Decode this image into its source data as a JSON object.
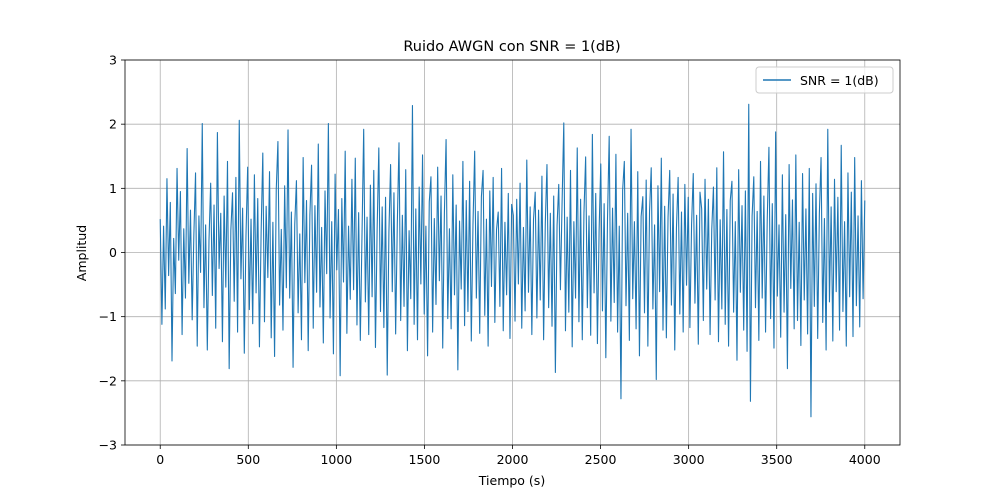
{
  "chart_data": {
    "type": "line",
    "title": "Ruido AWGN con SNR = 1(dB)",
    "xlabel": "Tiempo (s)",
    "ylabel": "Amplitud",
    "xlim": [
      -200,
      4200
    ],
    "ylim": [
      -3,
      3
    ],
    "x_ticks": [
      0,
      500,
      1000,
      1500,
      2000,
      2500,
      3000,
      3500,
      4000
    ],
    "x_tick_labels": [
      "0",
      "500",
      "1000",
      "1500",
      "2000",
      "2500",
      "3000",
      "3500",
      "4000"
    ],
    "y_ticks": [
      -3,
      -2,
      -1,
      0,
      1,
      2,
      3
    ],
    "y_tick_labels": [
      "−3",
      "−2",
      "−1",
      "0",
      "1",
      "2",
      "3"
    ],
    "grid": true,
    "legend_position": "top-right",
    "x_range": [
      0,
      4000
    ],
    "series": [
      {
        "name": "SNR = 1(dB)",
        "color": "#1f77b4",
        "values": [
          0.52,
          -1.12,
          0.41,
          -0.88,
          1.15,
          -0.36,
          0.78,
          -1.69,
          0.22,
          -0.64,
          1.31,
          -0.12,
          0.95,
          -1.28,
          0.37,
          -0.71,
          1.62,
          -0.48,
          0.66,
          -1.05,
          0.28,
          1.24,
          -1.46,
          0.57,
          -0.31,
          2.01,
          -0.86,
          0.43,
          -1.52,
          0.19,
          1.08,
          -0.67,
          0.74,
          -1.18,
          1.87,
          -0.25,
          0.61,
          -1.39,
          0.88,
          -0.54,
          1.42,
          -1.81,
          0.35,
          0.93,
          -0.76,
          1.17,
          -1.24,
          2.06,
          -0.41,
          0.69,
          -1.57,
          0.26,
          1.33,
          -0.89,
          0.52,
          -1.11,
          1.21,
          -0.63,
          0.84,
          -1.47,
          0.31,
          1.55,
          -1.08,
          0.72,
          -0.39,
          1.26,
          -1.33,
          0.47,
          -1.62,
          0.98,
          1.73,
          -0.82,
          0.36,
          -1.21,
          1.04,
          -0.55,
          1.91,
          -0.71,
          0.63,
          -1.79,
          0.44,
          1.12,
          -0.94,
          0.29,
          -1.36,
          1.48,
          -0.47,
          0.81,
          -1.53,
          0.58,
          1.36,
          -1.18,
          0.73,
          -0.62,
          1.69,
          -0.85,
          0.39,
          -1.41,
          0.96,
          -0.33,
          2.01,
          -1.02,
          0.48,
          -1.58,
          1.22,
          -0.27,
          0.67,
          -1.92,
          0.84,
          -0.46,
          1.58,
          -1.26,
          0.41,
          -0.73,
          1.14,
          -0.58,
          1.47,
          -1.13,
          0.62,
          -1.37,
          0.28,
          1.92,
          -0.77,
          0.55,
          -1.28,
          1.05,
          -0.69,
          1.28,
          -1.48,
          0.37,
          1.63,
          -0.92,
          0.71,
          -1.17,
          0.86,
          -1.91,
          0.32,
          1.37,
          -0.61,
          0.93,
          -1.27,
          0.46,
          1.71,
          -1.06,
          0.58,
          -0.84,
          1.29,
          -1.53,
          0.34,
          -0.72,
          2.29,
          -1.12,
          0.68,
          -1.36,
          1.02,
          -0.49,
          1.52,
          -0.96,
          0.41,
          -1.61,
          0.79,
          1.18,
          -1.24,
          0.53,
          -0.81,
          1.33,
          -0.44,
          0.88,
          -1.49,
          0.62,
          1.76,
          -1.03,
          0.37,
          -1.19,
          1.21,
          -0.66,
          0.74,
          -1.83,
          0.49,
          -0.57,
          1.42,
          -1.14,
          0.81,
          -0.92,
          1.11,
          -1.38,
          0.43,
          1.58,
          -0.71,
          0.64,
          -1.26,
          0.87,
          1.28,
          -0.98,
          0.52,
          -1.46,
          0.96,
          -0.53,
          1.17,
          -1.09,
          0.36,
          0.63,
          -0.84,
          1.31,
          -1.22,
          0.47,
          -0.66,
          0.92,
          -1.34,
          0.75,
          0.58,
          -1.07,
          0.83,
          -0.49,
          1.08,
          -1.18,
          0.39,
          -0.91,
          1.44,
          -0.62,
          0.71,
          -1.28,
          0.52,
          0.94,
          -1.02,
          0.66,
          -0.74,
          1.19,
          -1.36,
          0.45,
          1.37,
          -0.86,
          0.61,
          -1.15,
          0.88,
          -1.87,
          0.42,
          1.06,
          -0.58,
          0.79,
          2.02,
          -1.22,
          0.55,
          -0.93,
          1.28,
          -1.47,
          0.48,
          -0.71,
          1.63,
          -1.08,
          0.83,
          -1.36,
          0.62,
          1.49,
          -0.86,
          0.57,
          -1.29,
          1.84,
          -0.63,
          0.92,
          -1.42,
          0.34,
          1.38,
          -0.91,
          0.76,
          -1.64,
          0.52,
          1.81,
          -1.07,
          0.69,
          -0.78,
          1.53,
          -1.24,
          0.41,
          -2.28,
          0.97,
          1.42,
          -0.83,
          0.61,
          -1.37,
          1.92,
          -0.72,
          0.48,
          -1.19,
          1.26,
          -1.61,
          0.56,
          0.87,
          -0.94,
          1.13,
          -1.46,
          0.64,
          1.32,
          -0.88,
          0.43,
          -1.98,
          1.04,
          -0.61,
          1.47,
          -1.21,
          0.72,
          -1.33,
          0.55,
          1.28,
          -0.82,
          0.91,
          -1.52,
          0.38,
          1.17,
          -0.96,
          0.63,
          -1.24,
          1.06,
          -0.51,
          0.86,
          -1.17,
          0.44,
          1.23,
          -0.79,
          0.58,
          -1.43,
          0.94,
          0.68,
          -1.06,
          1.14,
          -0.57,
          0.83,
          -1.28,
          0.36,
          1.02,
          -0.74,
          1.32,
          -1.39,
          0.51,
          -0.88,
          1.57,
          -1.12,
          0.67,
          -1.46,
          0.81,
          1.11,
          -0.93,
          0.48,
          -1.68,
          1.29,
          -0.62,
          0.73,
          -1.21,
          0.96,
          -1.54,
          2.31,
          -2.32,
          0.57,
          1.18,
          -0.86,
          0.64,
          -1.37,
          1.42,
          -0.71,
          0.88,
          -1.24,
          0.52,
          1.64,
          -1.03,
          0.76,
          -1.49,
          1.88,
          -0.68,
          0.43,
          -1.32,
          1.21,
          -0.93,
          0.59,
          -1.81,
          1.37,
          -0.56,
          0.82,
          -1.19,
          1.52,
          -1.06,
          0.47,
          -1.45,
          1.23,
          -0.74,
          0.68,
          -1.27,
          1.31,
          -2.56,
          0.92,
          -0.84,
          1.07,
          -1.34,
          0.61,
          1.48,
          -1.09,
          0.53,
          -1.52,
          1.92,
          -0.77,
          0.71,
          -1.38,
          1.14,
          -0.61,
          0.86,
          -1.21,
          1.67,
          -0.92,
          0.48,
          -1.46,
          1.24,
          -0.69,
          0.94,
          -1.31,
          1.48,
          -0.83,
          0.57,
          -1.16,
          1.12,
          -0.72,
          0.81
        ]
      }
    ]
  }
}
